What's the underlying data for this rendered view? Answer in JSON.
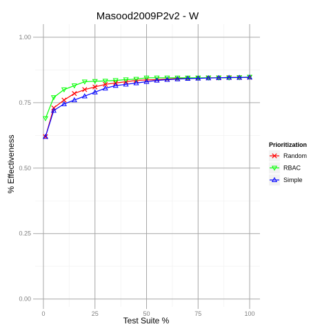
{
  "chart_data": {
    "type": "line",
    "title": "Masood2009P2v2 - W",
    "xlabel": "Test Suite %",
    "ylabel": "% Effectiveness",
    "xlim": [
      -4,
      105
    ],
    "ylim": [
      -0.03,
      1.05
    ],
    "x_ticks": [
      0,
      25,
      50,
      75,
      100
    ],
    "x_tick_labels": [
      "0",
      "25",
      "50",
      "75",
      "100"
    ],
    "y_ticks": [
      0.0,
      0.25,
      0.5,
      0.75,
      1.0
    ],
    "y_tick_labels": [
      "0.00",
      "0.25",
      "0.50",
      "0.75",
      "1.00"
    ],
    "grid": true,
    "legend": {
      "title": "Prioritization",
      "position": "right"
    },
    "x": [
      1,
      5,
      10,
      15,
      20,
      25,
      30,
      35,
      40,
      45,
      50,
      55,
      60,
      65,
      70,
      75,
      80,
      85,
      90,
      95,
      100
    ],
    "series": [
      {
        "name": "Random",
        "color": "#ff0000",
        "marker": "x",
        "values": [
          0.62,
          0.73,
          0.76,
          0.785,
          0.8,
          0.81,
          0.82,
          0.825,
          0.83,
          0.835,
          0.837,
          0.838,
          0.84,
          0.842,
          0.843,
          0.844,
          0.845,
          0.845,
          0.846,
          0.846,
          0.847
        ]
      },
      {
        "name": "RBAC",
        "color": "#00ff00",
        "marker": "triangle-down",
        "values": [
          0.69,
          0.77,
          0.8,
          0.815,
          0.83,
          0.832,
          0.833,
          0.835,
          0.838,
          0.84,
          0.845,
          0.845,
          0.845,
          0.845,
          0.845,
          0.845,
          0.845,
          0.845,
          0.845,
          0.846,
          0.848
        ]
      },
      {
        "name": "Simple",
        "color": "#0000ff",
        "marker": "triangle-up",
        "values": [
          0.62,
          0.72,
          0.745,
          0.76,
          0.775,
          0.79,
          0.805,
          0.815,
          0.82,
          0.825,
          0.83,
          0.835,
          0.838,
          0.84,
          0.842,
          0.843,
          0.844,
          0.845,
          0.846,
          0.846,
          0.847
        ]
      }
    ]
  }
}
